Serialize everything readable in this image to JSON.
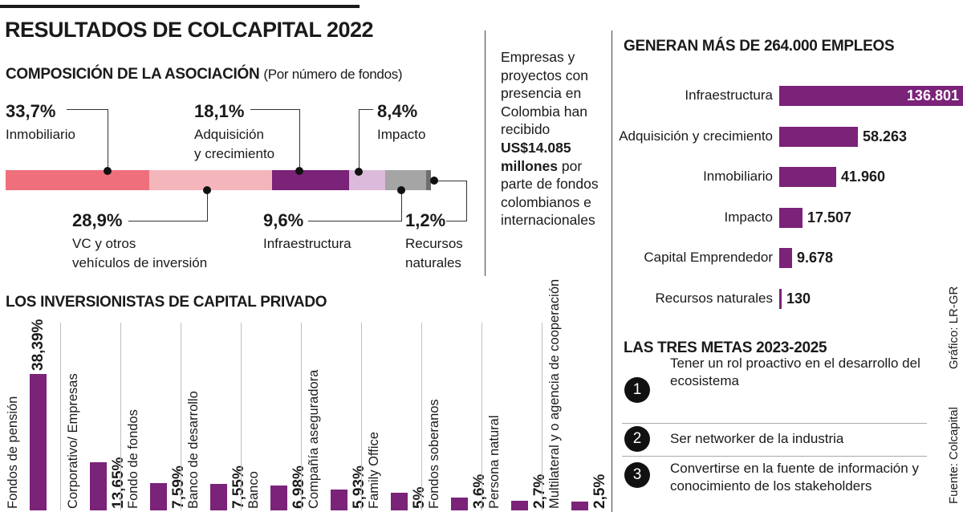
{
  "title": "RESULTADOS DE COLCAPITAL 2022",
  "composition": {
    "heading": "COMPOSICIÓN DE LA ASOCIACIÓN",
    "subheading": "(Por número de fondos)",
    "items": [
      {
        "pct": "33,7%",
        "label1": "Inmobiliario",
        "label2": "",
        "color": "#ef6f7c"
      },
      {
        "pct": "28,9%",
        "label1": "VC y otros",
        "label2": "vehículos de inversión",
        "color": "#f4b6bb"
      },
      {
        "pct": "18,1%",
        "label1": "Adquisición",
        "label2": "y crecimiento",
        "color": "#7b2279"
      },
      {
        "pct": "8,4%",
        "label1": "Impacto",
        "label2": "",
        "color": "#dcbadb"
      },
      {
        "pct": "9,6%",
        "label1": "Infraestructura",
        "label2": "",
        "color": "#a5a5a5"
      },
      {
        "pct": "1,2%",
        "label1": "Recursos",
        "label2": "naturales",
        "color": "#6e6e6e"
      }
    ]
  },
  "investment_note": {
    "lines": [
      "Empresas y",
      "proyectos con",
      "presencia en",
      "Colombia han",
      "recibido"
    ],
    "amount1": "US$14.085",
    "amount2": "millones",
    "tail1": "por",
    "lines2": [
      "parte de fondos",
      "colombianos e",
      "internacionales"
    ]
  },
  "investors": {
    "heading": "LOS INVERSIONISTAS DE CAPITAL PRIVADO",
    "bar_color": "#7b2279"
  },
  "employment": {
    "heading": "GENERAN MÁS DE 264.000 EMPLEOS",
    "bar_color": "#7b2279"
  },
  "goals": {
    "heading": "LAS TRES METAS 2023-2025",
    "items": [
      {
        "num": "1",
        "line1": "Tener un rol proactivo en el desarrollo del",
        "line2": "ecosistema"
      },
      {
        "num": "2",
        "line1": "Ser networker de la industria",
        "line2": ""
      },
      {
        "num": "3",
        "line1": "Convertirse en la fuente de información y",
        "line2": "conocimiento de los stakeholders"
      }
    ]
  },
  "credits": {
    "graphic": "Gráfico: LR-GR",
    "source": "Fuente: Colcapital"
  },
  "chart_data": [
    {
      "type": "bar",
      "orientation": "stacked-horizontal",
      "title": "COMPOSICIÓN DE LA ASOCIACIÓN (Por número de fondos)",
      "categories": [
        "Inmobiliario",
        "VC y otros vehículos de inversión",
        "Adquisición y crecimiento",
        "Impacto",
        "Infraestructura",
        "Recursos naturales"
      ],
      "values": [
        33.7,
        28.9,
        18.1,
        8.4,
        9.6,
        1.2
      ],
      "unit": "%"
    },
    {
      "type": "bar",
      "title": "LOS INVERSIONISTAS DE CAPITAL PRIVADO",
      "categories": [
        "Fondos de pensión",
        "Corporativo/ Empresas",
        "Fondo de fondos",
        "Banco de desarrollo",
        "Banco",
        "Compañía aseguradora",
        "Family Office",
        "Fondos soberanos",
        "Persona natural",
        "Multilateral y o agencia de cooperación"
      ],
      "values": [
        38.39,
        13.65,
        7.59,
        7.55,
        6.98,
        5.93,
        5,
        3.6,
        2.7,
        2.5
      ],
      "value_labels": [
        "38,39%",
        "13,65%",
        "7,59%",
        "7,55%",
        "6,98%",
        "5,93%",
        "5%",
        "3,6%",
        "2,7%",
        "2,5%"
      ],
      "unit": "%",
      "ylim": [
        0,
        38.39
      ]
    },
    {
      "type": "bar",
      "orientation": "horizontal",
      "title": "GENERAN MÁS DE 264.000 EMPLEOS",
      "categories": [
        "Infraestructura",
        "Adquisición y crecimiento",
        "Inmobiliario",
        "Impacto",
        "Capital Emprendedor",
        "Recursos naturales"
      ],
      "values": [
        136801,
        58263,
        41960,
        17507,
        9678,
        130
      ],
      "value_labels": [
        "136.801",
        "58.263",
        "41.960",
        "17.507",
        "9.678",
        "130"
      ],
      "xlim": [
        0,
        136801
      ]
    }
  ]
}
